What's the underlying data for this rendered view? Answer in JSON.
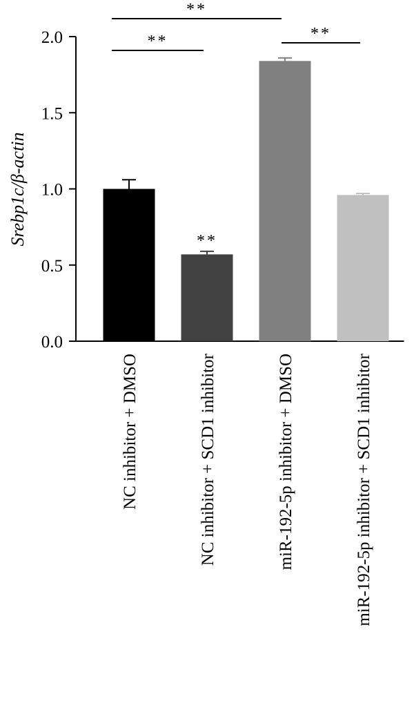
{
  "chart_data": {
    "type": "bar",
    "ylabel": "Srebp1c/β-actin",
    "ylim": [
      0,
      2.0
    ],
    "yticks": [
      0.0,
      0.5,
      1.0,
      1.5,
      2.0
    ],
    "ytick_labels": [
      "0.0",
      "0.5",
      "1.0",
      "1.5",
      "2.0"
    ],
    "categories": [
      "NC inhibitor + DMSO",
      "NC inhibitor + SCD1 inhibitor",
      "miR-192-5p inhibitor + DMSO",
      "miR-192-5p inhibitor + SCD1 inhibitor"
    ],
    "values": [
      1.0,
      0.57,
      1.84,
      0.96
    ],
    "errors": [
      0.06,
      0.02,
      0.02,
      0.01
    ],
    "colors": [
      "#000000",
      "#414141",
      "#808080",
      "#c0c0c0"
    ],
    "grid": false,
    "annotations": [
      {
        "type": "bracket",
        "from": 0,
        "to": 2,
        "text": "**"
      },
      {
        "type": "bracket",
        "from": 0,
        "to": 1,
        "text": "**"
      },
      {
        "type": "bracket",
        "from": 2,
        "to": 3,
        "text": "**"
      },
      {
        "type": "bar_label",
        "index": 1,
        "text": "**"
      }
    ]
  }
}
